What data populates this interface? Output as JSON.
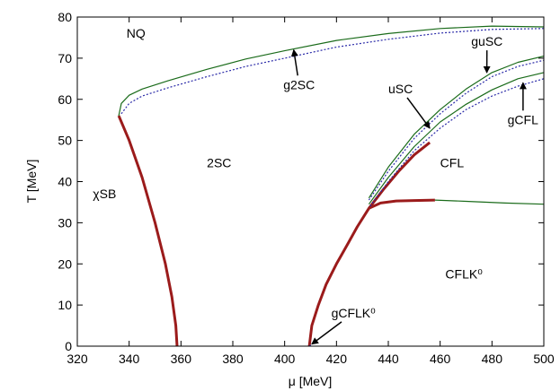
{
  "chart_data": {
    "type": "line",
    "xlabel": "μ [MeV]",
    "ylabel": "T [MeV]",
    "xlim": [
      320,
      500
    ],
    "ylim": [
      0,
      80
    ],
    "xticks": [
      320,
      340,
      360,
      380,
      400,
      420,
      440,
      460,
      480,
      500
    ],
    "yticks": [
      0,
      10,
      20,
      30,
      40,
      50,
      60,
      70,
      80
    ],
    "grid": false,
    "colors": {
      "first_order": "#9b1b1b",
      "second_order": "#1a6b1a",
      "dotted": "#2a2aa8"
    },
    "series": [
      {
        "style": "first_order",
        "points": [
          [
            336,
            56
          ],
          [
            340,
            50
          ],
          [
            345,
            41
          ],
          [
            350,
            30
          ],
          [
            354,
            20
          ],
          [
            356.5,
            12
          ],
          [
            358,
            5
          ],
          [
            358.5,
            0
          ]
        ]
      },
      {
        "style": "first_order",
        "points": [
          [
            409.5,
            0
          ],
          [
            410.5,
            5
          ],
          [
            413,
            10
          ],
          [
            416,
            15
          ],
          [
            420,
            20
          ],
          [
            424.5,
            25
          ],
          [
            428,
            29
          ],
          [
            432.5,
            33.5
          ],
          [
            438,
            38
          ],
          [
            444,
            42.5
          ],
          [
            450,
            46.5
          ],
          [
            456,
            49.5
          ]
        ]
      },
      {
        "style": "first_order",
        "points": [
          [
            432.5,
            33.5
          ],
          [
            437,
            34.8
          ],
          [
            443,
            35.3
          ],
          [
            450,
            35.4
          ],
          [
            458,
            35.5
          ]
        ]
      },
      {
        "style": "second_order",
        "points": [
          [
            458,
            35.5
          ],
          [
            470,
            35.2
          ],
          [
            485,
            34.8
          ],
          [
            500,
            34.5
          ]
        ]
      },
      {
        "style": "second_order",
        "points": [
          [
            336,
            56
          ],
          [
            337,
            59
          ],
          [
            340,
            61
          ],
          [
            345,
            62.5
          ],
          [
            355,
            64.5
          ],
          [
            370,
            67.3
          ],
          [
            385,
            69.8
          ],
          [
            400,
            71.8
          ],
          [
            420,
            74.3
          ],
          [
            440,
            76
          ],
          [
            460,
            77.2
          ],
          [
            480,
            77.8
          ],
          [
            500,
            77.6
          ]
        ]
      },
      {
        "style": "dotted",
        "points": [
          [
            337,
            56.5
          ],
          [
            340,
            59
          ],
          [
            345,
            60.8
          ],
          [
            355,
            62.8
          ],
          [
            370,
            65.5
          ],
          [
            385,
            68
          ],
          [
            400,
            70
          ],
          [
            420,
            72.7
          ],
          [
            440,
            74.6
          ],
          [
            460,
            76.1
          ],
          [
            480,
            77
          ],
          [
            500,
            77.2
          ]
        ]
      },
      {
        "style": "second_order",
        "points": [
          [
            432.5,
            36
          ],
          [
            440,
            43.5
          ],
          [
            450,
            51.5
          ],
          [
            460,
            57.5
          ],
          [
            470,
            62.5
          ],
          [
            480,
            66.5
          ],
          [
            490,
            69
          ],
          [
            500,
            70.5
          ]
        ]
      },
      {
        "style": "dotted",
        "points": [
          [
            432.5,
            35.5
          ],
          [
            440,
            42.5
          ],
          [
            450,
            50.5
          ],
          [
            460,
            56.5
          ],
          [
            470,
            61.5
          ],
          [
            480,
            65.5
          ],
          [
            490,
            68
          ],
          [
            500,
            69.5
          ]
        ]
      },
      {
        "style": "second_order",
        "points": [
          [
            432.5,
            34.5
          ],
          [
            440,
            41
          ],
          [
            450,
            48.5
          ],
          [
            460,
            54.5
          ],
          [
            470,
            58.8
          ],
          [
            480,
            62.3
          ],
          [
            490,
            65
          ],
          [
            500,
            66.5
          ]
        ]
      },
      {
        "style": "dotted",
        "points": [
          [
            433,
            34
          ],
          [
            440,
            40
          ],
          [
            450,
            47.5
          ],
          [
            460,
            53
          ],
          [
            470,
            57.5
          ],
          [
            480,
            60.8
          ],
          [
            490,
            63.2
          ],
          [
            500,
            65
          ]
        ]
      },
      {
        "style": "dotted",
        "points": [
          [
            409.5,
            0
          ],
          [
            410.5,
            0.5
          ],
          [
            411.5,
            1
          ]
        ]
      }
    ],
    "annotations": [
      {
        "text": "NQ",
        "x": 339,
        "y": 75,
        "style": "region"
      },
      {
        "text": "2SC",
        "x": 370,
        "y": 43.5,
        "style": "region"
      },
      {
        "text": "χSB",
        "x": 326,
        "y": 36,
        "style": "region"
      },
      {
        "text": "CFL",
        "x": 460,
        "y": 43.5,
        "style": "region"
      },
      {
        "text": "CFLK⁰",
        "x": 462,
        "y": 16.5,
        "style": "region"
      },
      {
        "text": "g2SC",
        "x": 399.5,
        "y": 62.5,
        "style": "label",
        "arrow_to": [
          403.5,
          72
        ]
      },
      {
        "text": "uSC",
        "x": 440,
        "y": 61.5,
        "style": "label",
        "arrow_to": [
          456,
          53
        ]
      },
      {
        "text": "guSC",
        "x": 472,
        "y": 73,
        "style": "label",
        "arrow_to": [
          478,
          66.5
        ]
      },
      {
        "text": "gCFL",
        "x": 486,
        "y": 54,
        "style": "label",
        "arrow_to": [
          492,
          64
        ]
      },
      {
        "text": "gCFLK⁰",
        "x": 418,
        "y": 7,
        "style": "label",
        "arrow_to": [
          410.5,
          0.5
        ]
      }
    ]
  }
}
